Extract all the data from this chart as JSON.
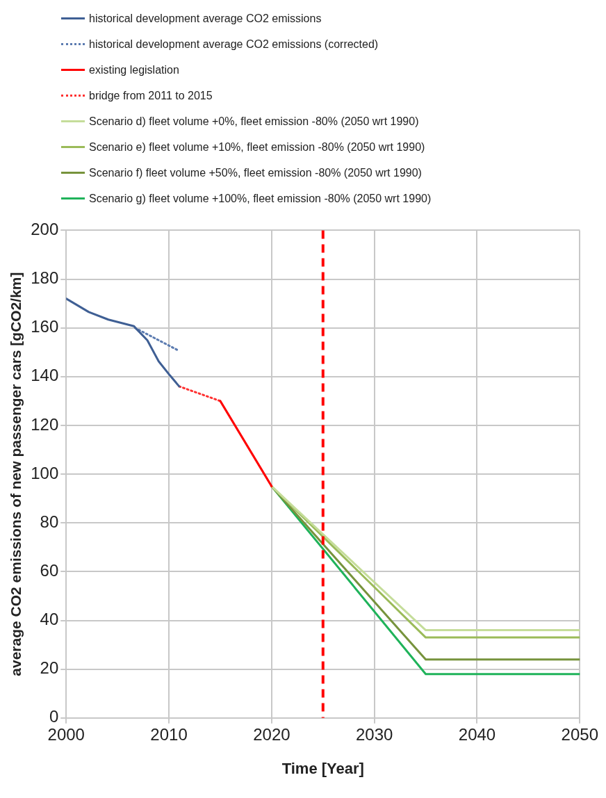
{
  "chart_data": {
    "type": "line",
    "xlabel": "Time [Year]",
    "ylabel": "average CO2 emissions of new passenger cars [gCO2/km]",
    "xlim": [
      2000,
      2050
    ],
    "xticks": [
      2000,
      2010,
      2020,
      2030,
      2040,
      2050
    ],
    "ylim": [
      0,
      200
    ],
    "yticks": [
      0,
      20,
      40,
      60,
      80,
      100,
      120,
      140,
      160,
      180,
      200
    ],
    "grid": true,
    "legend": "top",
    "marker": "none",
    "series": [
      {
        "name": "historical development average CO2 emissions",
        "color": "#3f5f94",
        "line_style": "solid",
        "x": [
          2000,
          2002.2,
          2004.1,
          2006.6,
          2006.9,
          2007.9,
          2009,
          2010.1,
          2011
        ],
        "values": [
          172,
          166.5,
          163.4,
          160.7,
          159.3,
          154.9,
          146.3,
          140.5,
          136
        ]
      },
      {
        "name": "historical development  average CO2 emissions (corrected)",
        "color": "#5b7bb0",
        "line_style": "dotted",
        "x": [
          2006.7,
          2010.8
        ],
        "values": [
          160,
          151
        ]
      },
      {
        "name": "existing legislation",
        "color": "#ff0000",
        "line_style": "solid",
        "x": [
          2015,
          2020
        ],
        "values": [
          130,
          95
        ]
      },
      {
        "name": "bridge from 2011 to 2015",
        "color": "#ff3030",
        "line_style": "dotted",
        "x": [
          2011,
          2015
        ],
        "values": [
          136,
          130
        ]
      },
      {
        "name": "Scenario d) fleet volume +0%, fleet emission -80% (2050 wrt 1990)",
        "color": "#c5dd9a",
        "line_style": "solid",
        "x": [
          2020,
          2035,
          2050
        ],
        "values": [
          95,
          36,
          36
        ]
      },
      {
        "name": "Scenario e) fleet volume +10%, fleet emission -80% (2050 wrt 1990)",
        "color": "#9bbb59",
        "line_style": "solid",
        "x": [
          2020,
          2035,
          2050
        ],
        "values": [
          95,
          33,
          33
        ]
      },
      {
        "name": "Scenario f) fleet volume +50%, fleet emission -80% (2050 wrt 1990)",
        "color": "#77933c",
        "line_style": "solid",
        "x": [
          2020,
          2035,
          2050
        ],
        "values": [
          95,
          24,
          24
        ]
      },
      {
        "name": "Scenario g) fleet volume +100%, fleet emission -80% (2050 wrt 1990)",
        "color": "#1fb35a",
        "line_style": "solid",
        "x": [
          2020,
          2035,
          2050
        ],
        "values": [
          95,
          18,
          18
        ]
      }
    ],
    "ref_lines": [
      {
        "axis": "x",
        "value": 2025,
        "color": "#ff0000",
        "line_style": "dashed"
      }
    ]
  }
}
